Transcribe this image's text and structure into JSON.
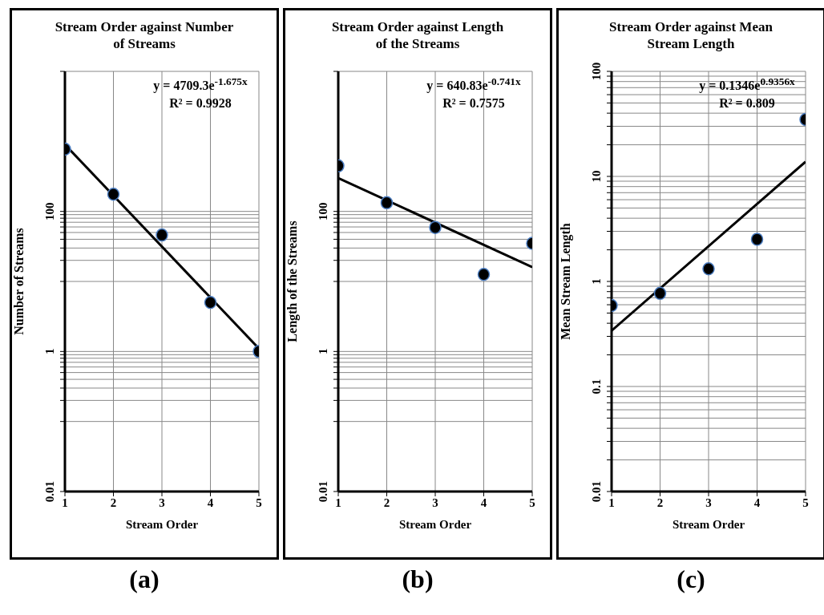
{
  "chart_data": [
    {
      "type": "scatter",
      "title": "Stream Order against Number of Streams",
      "xlabel": "Stream Order",
      "ylabel": "Number of Streams",
      "log": "y",
      "grid": true,
      "marker": "circle",
      "xlim": [
        1,
        5
      ],
      "xticks": [
        1,
        2,
        3,
        4,
        5
      ],
      "ylim": [
        0.01,
        10000
      ],
      "yticks": [
        0.01,
        {
          "value": 0.1,
          "label": null
        },
        {
          "value": 0.2,
          "label": null
        },
        {
          "value": 0.3,
          "label": null
        },
        {
          "value": 0.4,
          "label": null
        },
        {
          "value": 0.5,
          "label": null
        },
        {
          "value": 0.6,
          "label": null
        },
        {
          "value": 0.7,
          "label": null
        },
        {
          "value": 0.8,
          "label": null
        },
        {
          "value": 0.9,
          "label": null
        },
        1,
        {
          "value": 10,
          "label": null
        },
        {
          "value": 20,
          "label": null
        },
        {
          "value": 30,
          "label": null
        },
        {
          "value": 40,
          "label": null
        },
        {
          "value": 50,
          "label": null
        },
        {
          "value": 60,
          "label": null
        },
        {
          "value": 70,
          "label": null
        },
        {
          "value": 80,
          "label": null
        },
        {
          "value": 90,
          "label": null
        },
        100,
        {
          "value": 10000,
          "label": null
        }
      ],
      "series": [
        {
          "color": "#000000",
          "x": [
            1,
            2,
            3,
            4,
            5
          ],
          "values": [
            774,
            176,
            46,
            5,
            1
          ]
        },
        {
          "type": "line",
          "color": "#000000",
          "marker": "none",
          "x": [
            1,
            5
          ],
          "values": [
            900,
            1.1
          ]
        }
      ],
      "annotations": [
        "y = 4709.3e$^{-1.675x}$",
        "R² = 0.9928",
        "(a)"
      ]
    },
    {
      "type": "scatter",
      "title": "Stream Order against Length of the Streams",
      "xlabel": "Stream Order",
      "ylabel": "Length of the Streams",
      "log": "y",
      "grid": true,
      "marker": "circle",
      "xlim": [
        1,
        5
      ],
      "xticks": [
        1,
        2,
        3,
        4,
        5
      ],
      "ylim": [
        0.01,
        10000
      ],
      "yticks": [
        0.01,
        {
          "value": 0.1,
          "label": null
        },
        {
          "value": 0.2,
          "label": null
        },
        {
          "value": 0.3,
          "label": null
        },
        {
          "value": 0.4,
          "label": null
        },
        {
          "value": 0.5,
          "label": null
        },
        {
          "value": 0.6,
          "label": null
        },
        {
          "value": 0.7,
          "label": null
        },
        {
          "value": 0.8,
          "label": null
        },
        {
          "value": 0.9,
          "label": null
        },
        1,
        {
          "value": 10,
          "label": null
        },
        {
          "value": 20,
          "label": null
        },
        {
          "value": 30,
          "label": null
        },
        {
          "value": 40,
          "label": null
        },
        {
          "value": 50,
          "label": null
        },
        {
          "value": 60,
          "label": null
        },
        {
          "value": 70,
          "label": null
        },
        {
          "value": 80,
          "label": null
        },
        {
          "value": 90,
          "label": null
        },
        100,
        {
          "value": 10000,
          "label": null
        }
      ],
      "series": [
        {
          "color": "#000000",
          "x": [
            1,
            2,
            3,
            4,
            5
          ],
          "values": [
            447,
            133,
            59,
            12.6,
            35
          ]
        },
        {
          "type": "line",
          "color": "#000000",
          "marker": "none",
          "x": [
            1,
            5
          ],
          "values": [
            300,
            16
          ]
        }
      ],
      "annotations": [
        "y = 640.83e$^{-0.741x}$",
        "R² = 0.7575",
        "(b)"
      ]
    },
    {
      "type": "scatter",
      "title": "Stream Order against Mean Stream Length",
      "xlabel": "Stream Order",
      "ylabel": "Mean Stream Length",
      "log": "y",
      "grid": true,
      "marker": "circle",
      "xlim": [
        1,
        5
      ],
      "xticks": [
        1,
        2,
        3,
        4,
        5
      ],
      "ylim": [
        0.01,
        100
      ],
      "yticks": [
        0.01,
        {
          "value": 0.02,
          "label": null
        },
        {
          "value": 0.03,
          "label": null
        },
        {
          "value": 0.04,
          "label": null
        },
        {
          "value": 0.05,
          "label": null
        },
        {
          "value": 0.06,
          "label": null
        },
        {
          "value": 0.07,
          "label": null
        },
        {
          "value": 0.08,
          "label": null
        },
        {
          "value": 0.09,
          "label": null
        },
        0.1,
        {
          "value": 0.2,
          "label": null
        },
        {
          "value": 0.3,
          "label": null
        },
        {
          "value": 0.4,
          "label": null
        },
        {
          "value": 0.5,
          "label": null
        },
        {
          "value": 0.6,
          "label": null
        },
        {
          "value": 0.7,
          "label": null
        },
        {
          "value": 0.8,
          "label": null
        },
        {
          "value": 0.9,
          "label": null
        },
        1,
        {
          "value": 2,
          "label": null
        },
        {
          "value": 3,
          "label": null
        },
        {
          "value": 4,
          "label": null
        },
        {
          "value": 5,
          "label": null
        },
        {
          "value": 6,
          "label": null
        },
        {
          "value": 7,
          "label": null
        },
        {
          "value": 8,
          "label": null
        },
        {
          "value": 9,
          "label": null
        },
        10,
        {
          "value": 20,
          "label": null
        },
        {
          "value": 30,
          "label": null
        },
        {
          "value": 40,
          "label": null
        },
        {
          "value": 50,
          "label": null
        },
        {
          "value": 60,
          "label": null
        },
        {
          "value": 70,
          "label": null
        },
        {
          "value": 80,
          "label": null
        },
        {
          "value": 90,
          "label": null
        },
        100
      ],
      "series": [
        {
          "color": "#000000",
          "x": [
            1,
            2,
            3,
            4,
            5
          ],
          "values": [
            0.59,
            0.77,
            1.32,
            2.52,
            34.8
          ]
        },
        {
          "type": "line",
          "color": "#000000",
          "marker": "none",
          "x": [
            1,
            5
          ],
          "values": [
            0.34,
            13.8
          ]
        }
      ],
      "annotations": [
        "y = 0.1346e$^{0.9356x}$",
        "R² = 0.809",
        "(c)"
      ]
    }
  ]
}
